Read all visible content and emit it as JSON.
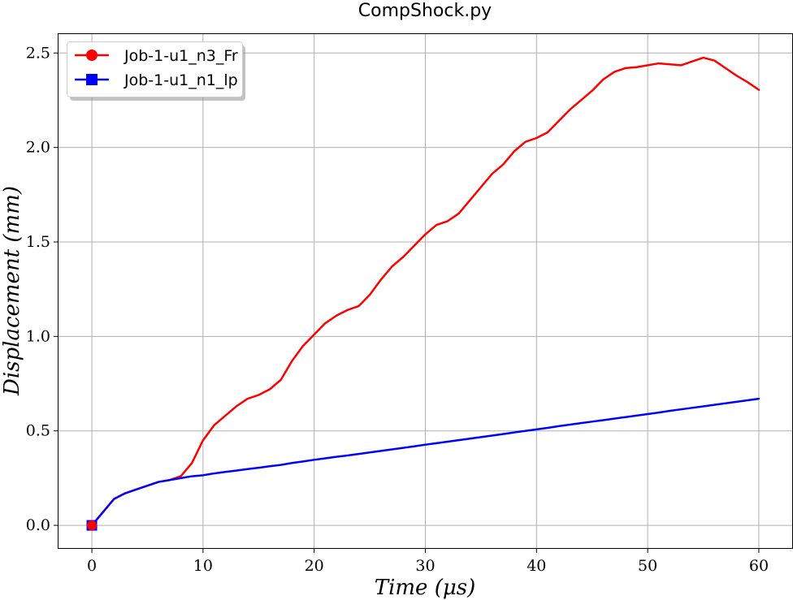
{
  "chart_data": {
    "type": "line",
    "title": "CompShock.py",
    "xlabel": "Time (μs)",
    "ylabel": "Displacement (mm)",
    "xlim": [
      -3,
      63
    ],
    "ylim": [
      -0.12,
      2.6
    ],
    "xticks": [
      0,
      10,
      20,
      30,
      40,
      50,
      60
    ],
    "yticks": [
      0.0,
      0.5,
      1.0,
      1.5,
      2.0,
      2.5
    ],
    "xtick_labels": [
      "0",
      "10",
      "20",
      "30",
      "40",
      "50",
      "60"
    ],
    "ytick_labels": [
      "0.0",
      "0.5",
      "1.0",
      "1.5",
      "2.0",
      "2.5"
    ],
    "grid": true,
    "legend_position": "top-left",
    "series": [
      {
        "name": "Job-1-u1_n3_Fr",
        "color": "#ff0000",
        "marker": "circle",
        "x": [
          0,
          1,
          2,
          3,
          4,
          5,
          6,
          7,
          8,
          9,
          10,
          11,
          12,
          13,
          14,
          15,
          16,
          17,
          18,
          19,
          20,
          21,
          22,
          23,
          24,
          25,
          26,
          27,
          28,
          29,
          30,
          31,
          32,
          33,
          34,
          35,
          36,
          37,
          38,
          39,
          40,
          41,
          42,
          43,
          44,
          45,
          46,
          47,
          48,
          49,
          50,
          51,
          52,
          53,
          54,
          55,
          56,
          57,
          58,
          59,
          60
        ],
        "y": [
          0.0,
          0.07,
          0.14,
          0.17,
          0.19,
          0.21,
          0.23,
          0.24,
          0.26,
          0.33,
          0.45,
          0.53,
          0.58,
          0.63,
          0.67,
          0.69,
          0.72,
          0.77,
          0.87,
          0.95,
          1.01,
          1.07,
          1.11,
          1.14,
          1.16,
          1.22,
          1.3,
          1.37,
          1.42,
          1.48,
          1.54,
          1.59,
          1.61,
          1.65,
          1.72,
          1.79,
          1.86,
          1.91,
          1.98,
          2.03,
          2.05,
          2.08,
          2.14,
          2.2,
          2.25,
          2.3,
          2.36,
          2.4,
          2.42,
          2.425,
          2.435,
          2.445,
          2.44,
          2.435,
          2.455,
          2.475,
          2.46,
          2.42,
          2.38,
          2.345,
          2.305
        ]
      },
      {
        "name": "Job-1-u1_n1_lp",
        "color": "#0000ff",
        "marker": "square",
        "x": [
          0,
          1,
          2,
          3,
          4,
          5,
          6,
          7,
          8,
          9,
          10,
          11,
          12,
          13,
          14,
          15,
          16,
          17,
          18,
          19,
          20,
          21,
          22,
          23,
          24,
          25,
          26,
          27,
          28,
          29,
          30,
          31,
          32,
          33,
          34,
          35,
          36,
          37,
          38,
          39,
          40,
          41,
          42,
          43,
          44,
          45,
          46,
          47,
          48,
          49,
          50,
          51,
          52,
          53,
          54,
          55,
          56,
          57,
          58,
          59,
          60
        ],
        "y": [
          0.0,
          0.07,
          0.14,
          0.17,
          0.19,
          0.21,
          0.23,
          0.24,
          0.25,
          0.26,
          0.265,
          0.275,
          0.283,
          0.29,
          0.298,
          0.305,
          0.313,
          0.32,
          0.33,
          0.338,
          0.347,
          0.355,
          0.363,
          0.37,
          0.378,
          0.386,
          0.394,
          0.402,
          0.41,
          0.418,
          0.427,
          0.435,
          0.443,
          0.451,
          0.459,
          0.467,
          0.475,
          0.483,
          0.492,
          0.5,
          0.508,
          0.516,
          0.525,
          0.533,
          0.541,
          0.549,
          0.557,
          0.565,
          0.573,
          0.581,
          0.589,
          0.597,
          0.606,
          0.614,
          0.622,
          0.63,
          0.638,
          0.646,
          0.654,
          0.662,
          0.67
        ]
      }
    ]
  }
}
